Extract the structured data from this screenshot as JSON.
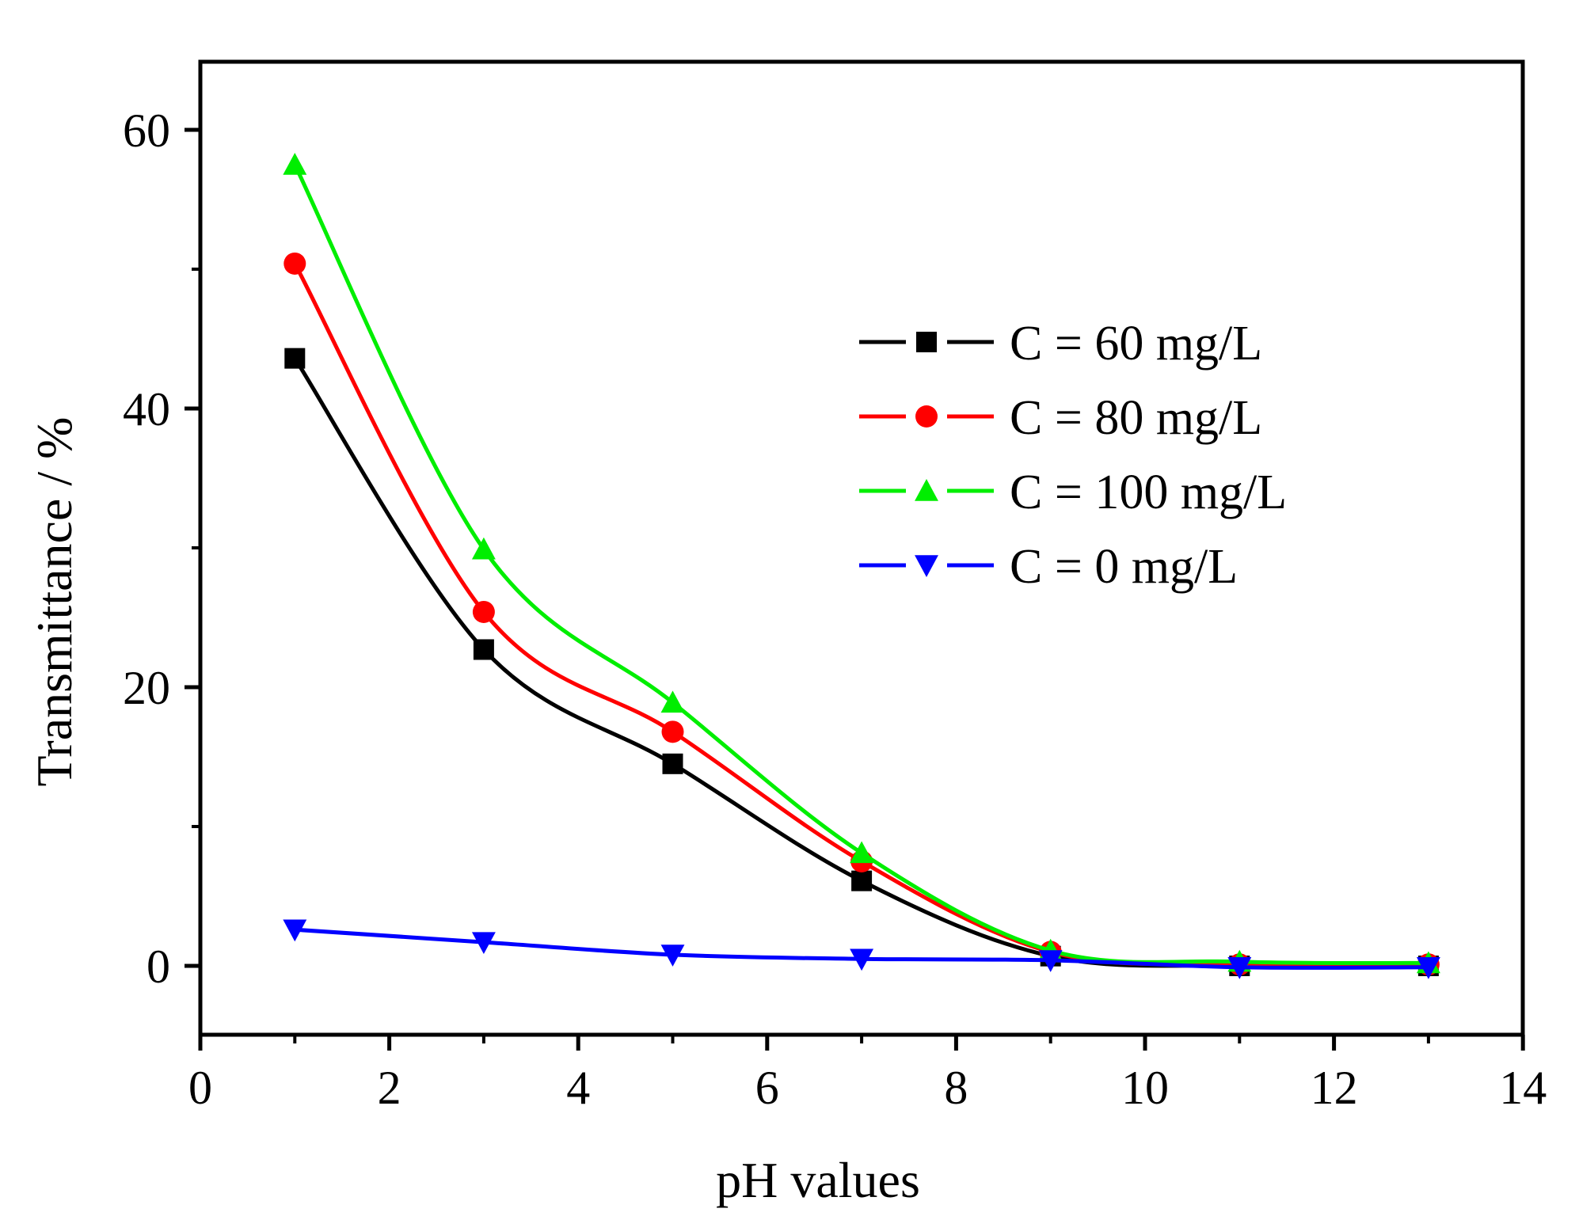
{
  "chart_data": {
    "type": "line",
    "title": "",
    "xlabel": "pH values",
    "ylabel": "Transmittance / %",
    "xlim": [
      0,
      14
    ],
    "ylim": [
      -5,
      65
    ],
    "xticks": [
      0,
      2,
      4,
      6,
      8,
      10,
      12,
      14
    ],
    "xtick_labels": [
      "0",
      "2",
      "4",
      "6",
      "8",
      "10",
      "12",
      "14"
    ],
    "yticks": [
      0,
      20,
      40,
      60
    ],
    "ytick_labels": [
      "0",
      "20",
      "40",
      "60"
    ],
    "y_minor_ticks": [
      10,
      30,
      50
    ],
    "grid": false,
    "legend_position": "top-right",
    "x": [
      1,
      3,
      5,
      7,
      9,
      11,
      13
    ],
    "series": [
      {
        "name": "C = 60 mg/L",
        "color": "#000000",
        "marker": "square",
        "values": [
          43.6,
          22.7,
          14.5,
          6.1,
          0.7,
          0.0,
          0.0
        ]
      },
      {
        "name": "C = 80 mg/L",
        "color": "#ff0000",
        "marker": "circle",
        "values": [
          50.4,
          25.4,
          16.8,
          7.5,
          1.0,
          0.1,
          0.1
        ]
      },
      {
        "name": "C = 100 mg/L",
        "color": "#00ee00",
        "marker": "triangle-up",
        "values": [
          57.5,
          29.9,
          18.9,
          8.1,
          1.1,
          0.3,
          0.2
        ]
      },
      {
        "name": "C = 0 mg/L",
        "color": "#0000ff",
        "marker": "triangle-down",
        "values": [
          2.6,
          1.7,
          0.8,
          0.5,
          0.4,
          -0.1,
          -0.1
        ]
      }
    ]
  }
}
